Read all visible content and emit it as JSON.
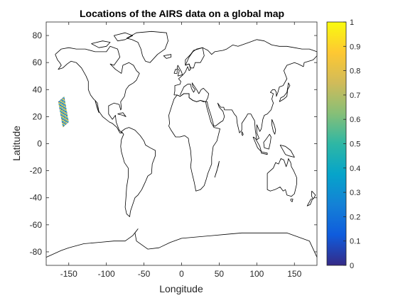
{
  "chart_data": {
    "type": "scatter",
    "title": "Locations of the AIRS data on a global map",
    "xlabel": "Longitude",
    "ylabel": "Latitude",
    "xlim": [
      -180,
      180
    ],
    "ylim": [
      -90,
      90
    ],
    "xticks": [
      -150,
      -100,
      -50,
      0,
      50,
      100,
      150
    ],
    "yticks": [
      -80,
      -60,
      -40,
      -20,
      0,
      20,
      40,
      60,
      80
    ],
    "grid": false,
    "background_map": "world coastlines",
    "swath": {
      "corners": [
        [
          -164,
          31
        ],
        [
          -156,
          35
        ],
        [
          -150,
          16
        ],
        [
          -158,
          12
        ]
      ],
      "n_along": 34,
      "n_across": 9
    },
    "colorbar": {
      "colormap": "parula",
      "limits": [
        0,
        1
      ],
      "ticks": [
        "0",
        "0.1",
        "0.2",
        "0.3",
        "0.4",
        "0.5",
        "0.6",
        "0.7",
        "0.8",
        "0.9",
        "1"
      ]
    },
    "colors": {
      "axis": "#262626",
      "coast": "#000000",
      "parula": [
        "#352a87",
        "#0f5cdd",
        "#1481d6",
        "#06a4ca",
        "#2eb7a4",
        "#87bf77",
        "#d1bb59",
        "#fec832",
        "#f9fb0e"
      ]
    }
  }
}
